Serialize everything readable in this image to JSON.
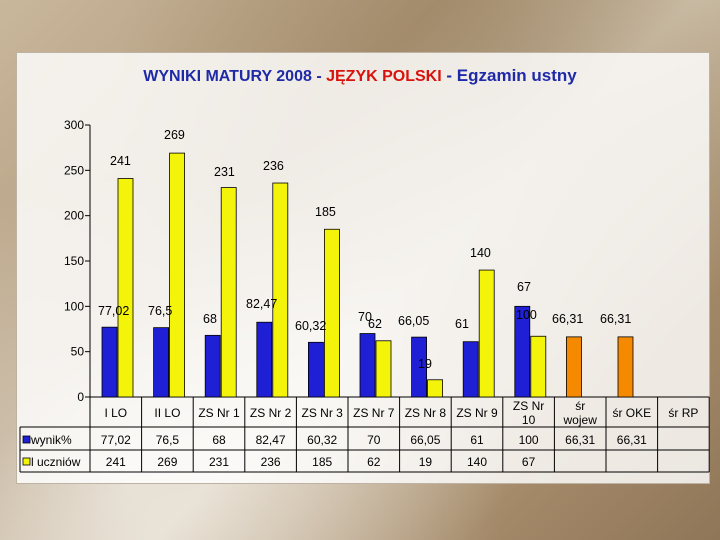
{
  "title": {
    "part1": "WYNIKI MATURY 2008 - ",
    "part2": "JĘZYK POLSKI",
    "part3": " - Egzamin ustny"
  },
  "colors": {
    "wynik": "#1f1fd6",
    "uczniow": "#f4f40a",
    "ref": "#f58a00",
    "outline": "#000000",
    "grid": "#000000"
  },
  "chart_data": {
    "type": "bar",
    "title": "WYNIKI MATURY 2008 - JĘZYK POLSKI - Egzamin ustny",
    "categories": [
      "I LO",
      "II LO",
      "ZS Nr 1",
      "ZS Nr 2",
      "ZS Nr 3",
      "ZS Nr 7",
      "ZS Nr 8",
      "ZS Nr 9",
      "ZS Nr 10",
      "śr wojew",
      "śr OKE",
      "śr RP"
    ],
    "category_lines": [
      [
        "I LO"
      ],
      [
        "II LO"
      ],
      [
        "ZS Nr 1"
      ],
      [
        "ZS Nr 2"
      ],
      [
        "ZS Nr 3"
      ],
      [
        "ZS Nr 7"
      ],
      [
        "ZS Nr 8"
      ],
      [
        "ZS Nr 9"
      ],
      [
        "ZS Nr",
        "10"
      ],
      [
        "śr",
        "wojew"
      ],
      [
        "śr OKE"
      ],
      [
        "śr RP"
      ]
    ],
    "series": [
      {
        "name": "wynik%",
        "values": [
          77.02,
          76.5,
          68,
          82.47,
          60.32,
          70,
          66.05,
          61,
          100,
          66.31,
          66.31,
          null
        ],
        "labels": [
          "77,02",
          "76,5",
          "68",
          "82,47",
          "60,32",
          "70",
          "66,05",
          "61",
          "100",
          "66,31",
          "66,31",
          ""
        ]
      },
      {
        "name": "l uczniów",
        "values": [
          241,
          269,
          231,
          236,
          185,
          62,
          19,
          140,
          67,
          null,
          null,
          null
        ],
        "labels": [
          "241",
          "269",
          "231",
          "236",
          "185",
          "62",
          "19",
          "140",
          "67",
          "",
          "",
          ""
        ]
      }
    ],
    "ylim": [
      0,
      300
    ],
    "yticks": [
      0,
      50,
      100,
      150,
      200,
      250,
      300
    ],
    "legend": "bottom-left, inside data table",
    "data_table": true
  }
}
